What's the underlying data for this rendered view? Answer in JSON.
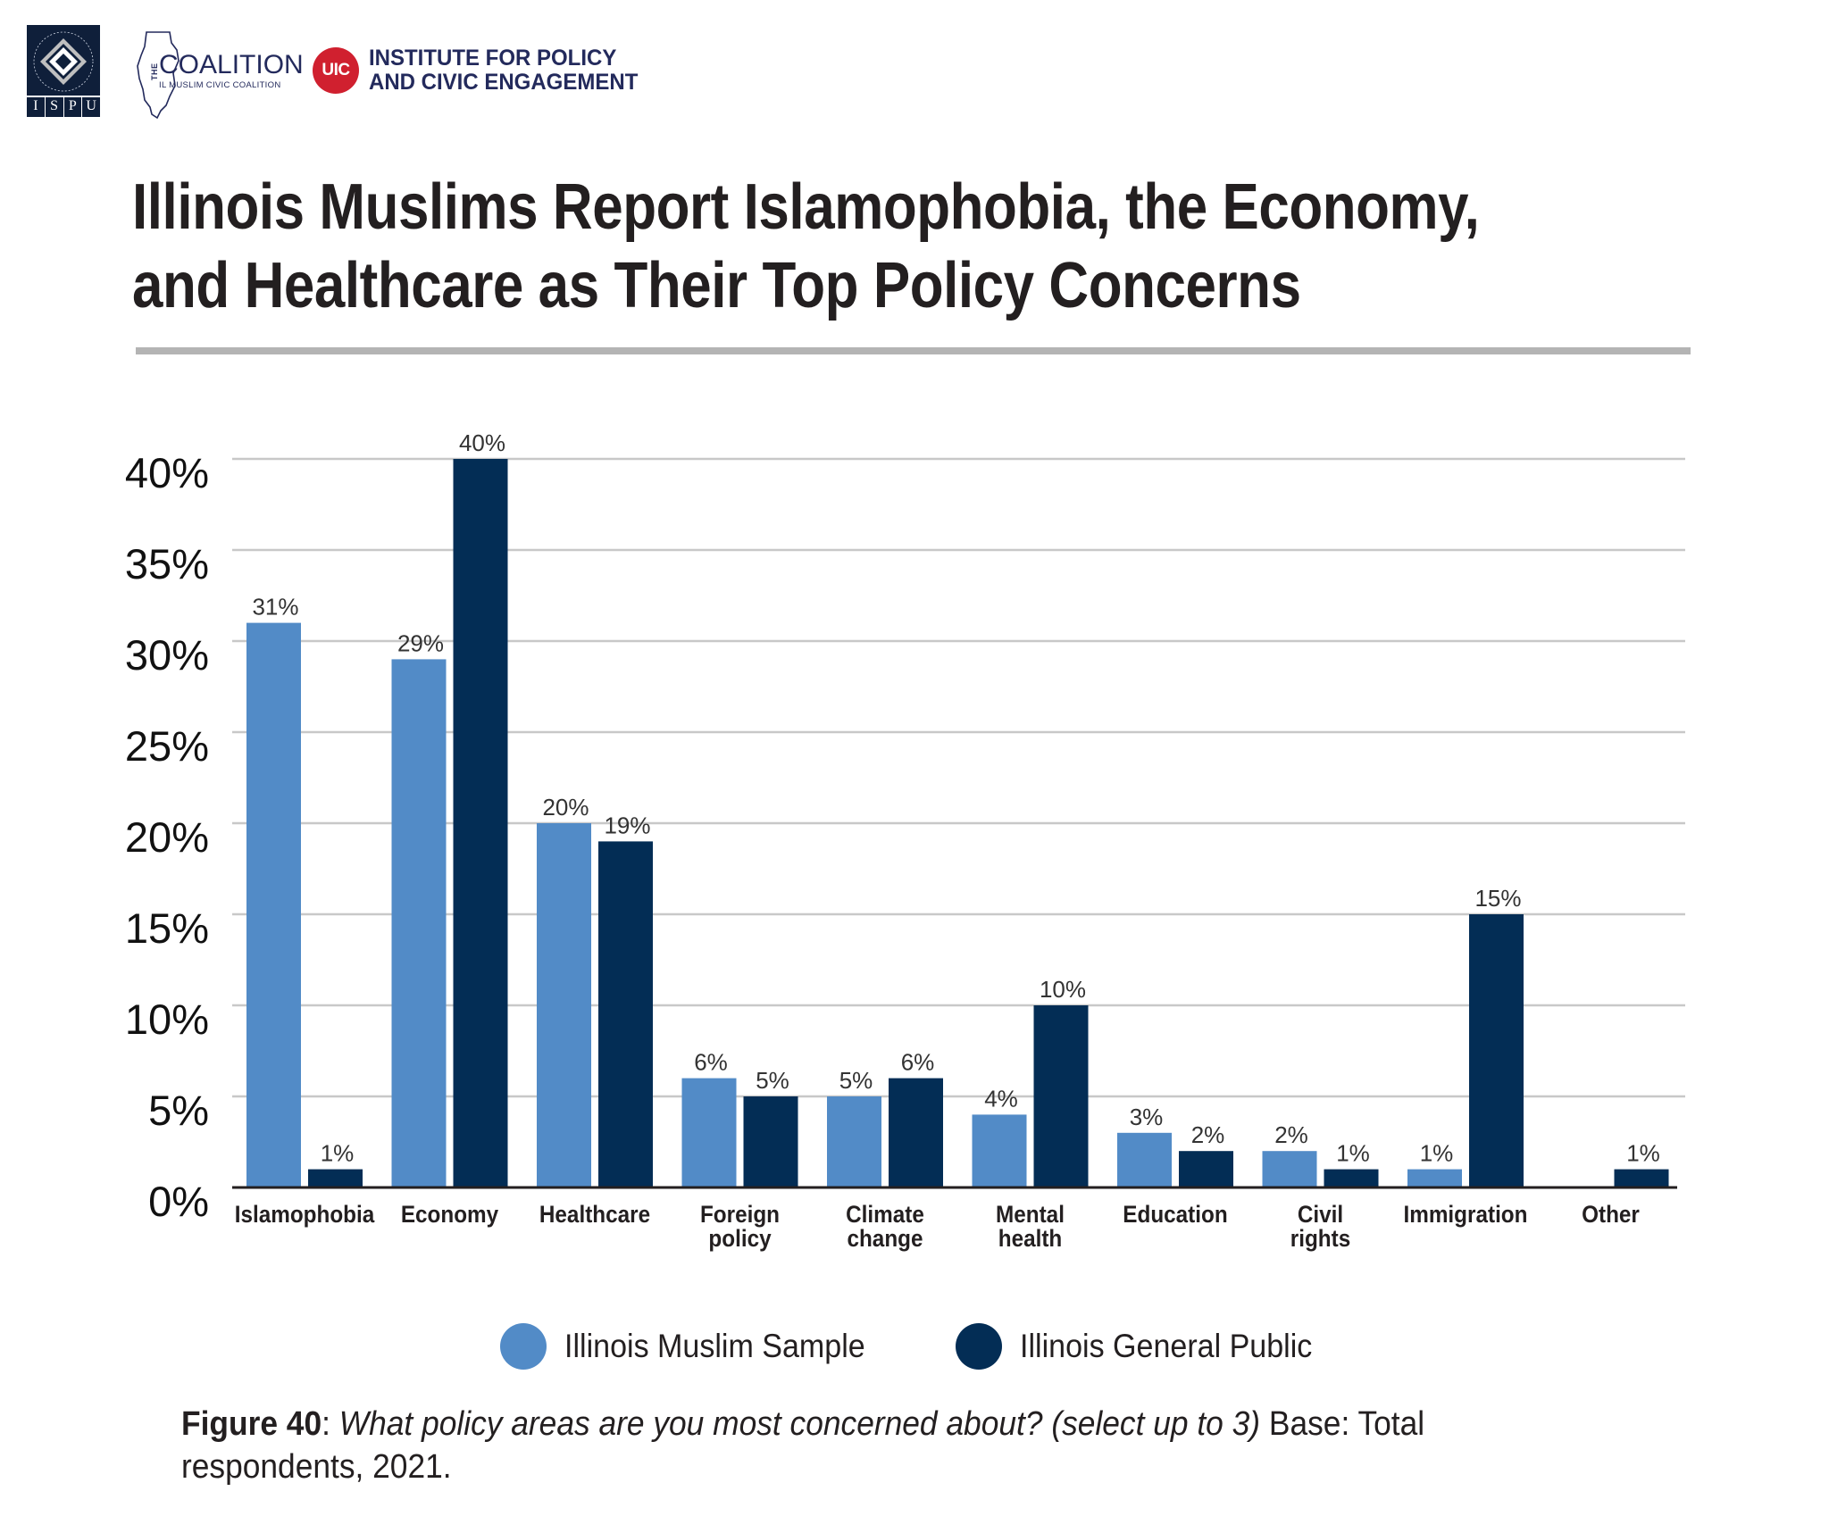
{
  "logos": {
    "ispu": {
      "letters": [
        "I",
        "S",
        "P",
        "U"
      ],
      "ring_text": "INSTITUTE FOR SOCIAL POLICY AND UNDERSTANDING"
    },
    "coalition": {
      "prefix": "THE",
      "name": "COALITION",
      "subtitle": "IL MUSLIM CIVIC COALITION"
    },
    "uic": {
      "badge": "UIC",
      "line1": "INSTITUTE FOR POLICY",
      "line2": "AND CIVIC ENGAGEMENT"
    }
  },
  "title": {
    "line1": "Illinois Muslims Report Islamophobia, the Economy,",
    "line2": "and Healthcare as Their Top Policy Concerns"
  },
  "colors": {
    "muslim_sample": "#528bc7",
    "general_public": "#032d55",
    "gridline": "#c8c8c8",
    "axis": "#231f20",
    "rule": "#b4b4b4",
    "uic_red": "#d0202f",
    "brand_navy": "#232a5c"
  },
  "chart_data": {
    "type": "bar",
    "title": "Illinois Muslims Report Islamophobia, the Economy, and Healthcare as Their Top Policy Concerns",
    "xlabel": "",
    "ylabel": "",
    "ylim": [
      0,
      40
    ],
    "yticks": [
      0,
      5,
      10,
      15,
      20,
      25,
      30,
      35,
      40
    ],
    "ytick_labels": [
      "0%",
      "5%",
      "10%",
      "15%",
      "20%",
      "25%",
      "30%",
      "35%",
      "40%"
    ],
    "grid": true,
    "legend_position": "bottom-center",
    "categories": [
      [
        "Islamophobia"
      ],
      [
        "Economy"
      ],
      [
        "Healthcare"
      ],
      [
        "Foreign",
        "policy"
      ],
      [
        "Climate",
        "change"
      ],
      [
        "Mental",
        "health"
      ],
      [
        "Education"
      ],
      [
        "Civil",
        "rights"
      ],
      [
        "Immigration"
      ],
      [
        "Other"
      ]
    ],
    "series": [
      {
        "name": "Illinois Muslim Sample",
        "color": "#528bc7",
        "values": [
          31,
          29,
          20,
          6,
          5,
          4,
          3,
          2,
          1,
          null
        ]
      },
      {
        "name": "Illinois General Public",
        "color": "#032d55",
        "values": [
          1,
          40,
          19,
          5,
          6,
          10,
          2,
          1,
          15,
          1
        ]
      }
    ],
    "value_suffix": "%"
  },
  "legend": [
    {
      "label": "Illinois Muslim Sample",
      "color": "#528bc7"
    },
    {
      "label": "Illinois General Public",
      "color": "#032d55"
    }
  ],
  "caption": {
    "figure": "Figure 40",
    "colon": ":",
    "question": " What policy areas are you most concerned about? (select up to 3)",
    "base": " Base: Total respondents, 2021."
  }
}
